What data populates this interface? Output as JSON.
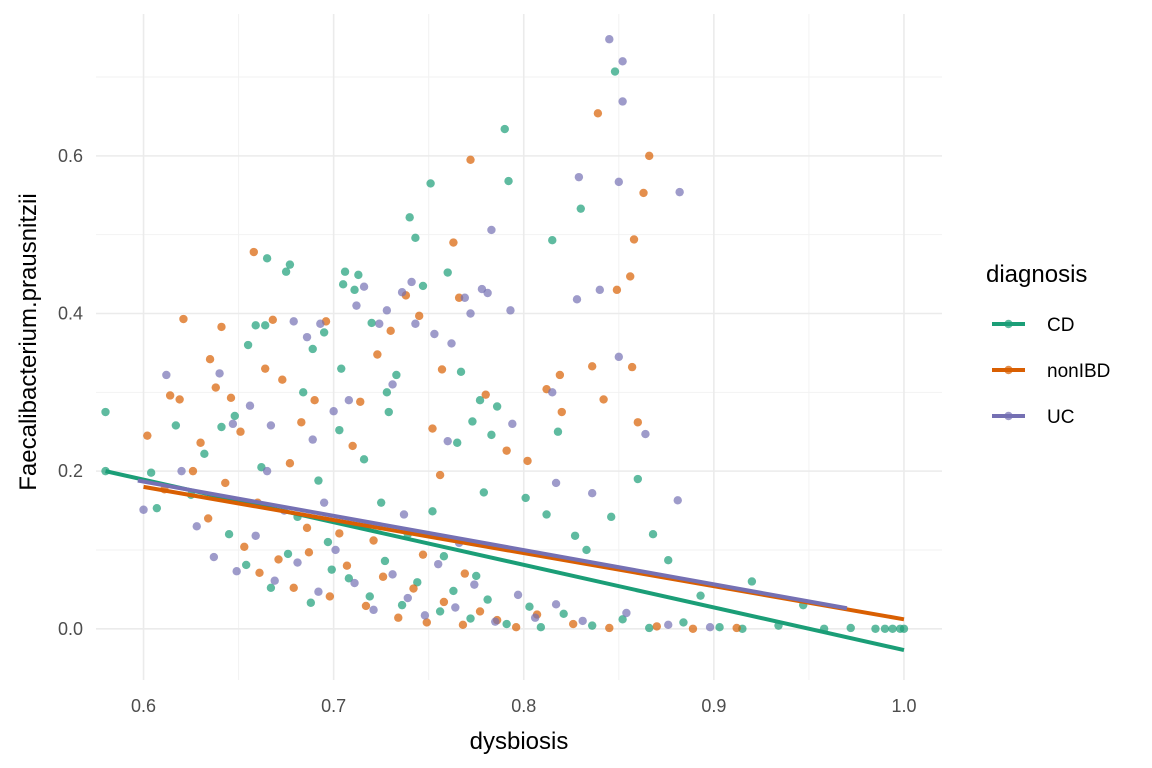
{
  "chart_data": {
    "type": "scatter",
    "title": "",
    "xlabel": "dysbiosis",
    "ylabel": "Faecalibacterium.prausnitzii",
    "xlim": [
      0.575,
      1.02
    ],
    "ylim": [
      -0.065,
      0.78
    ],
    "x_ticks": [
      "0.6",
      "0.7",
      "0.8",
      "0.9",
      "1.0"
    ],
    "y_ticks": [
      "0.0",
      "0.2",
      "0.4",
      "0.6"
    ],
    "grid": true,
    "legend": {
      "title": "diagnosis",
      "placement": "right"
    },
    "series": [
      {
        "name": "CD",
        "color": "#1B9E77",
        "trend": {
          "x": [
            0.58,
            1.0
          ],
          "y": [
            0.2,
            -0.027
          ]
        },
        "points": [
          [
            0.58,
            0.275
          ],
          [
            0.58,
            0.2
          ],
          [
            0.604,
            0.198
          ],
          [
            0.607,
            0.153
          ],
          [
            0.617,
            0.258
          ],
          [
            0.625,
            0.17
          ],
          [
            0.632,
            0.222
          ],
          [
            0.641,
            0.256
          ],
          [
            0.648,
            0.27
          ],
          [
            0.655,
            0.36
          ],
          [
            0.659,
            0.385
          ],
          [
            0.664,
            0.385
          ],
          [
            0.665,
            0.47
          ],
          [
            0.675,
            0.453
          ],
          [
            0.677,
            0.462
          ],
          [
            0.684,
            0.3
          ],
          [
            0.689,
            0.355
          ],
          [
            0.695,
            0.376
          ],
          [
            0.704,
            0.33
          ],
          [
            0.705,
            0.437
          ],
          [
            0.706,
            0.453
          ],
          [
            0.711,
            0.43
          ],
          [
            0.713,
            0.449
          ],
          [
            0.72,
            0.388
          ],
          [
            0.728,
            0.3
          ],
          [
            0.733,
            0.322
          ],
          [
            0.74,
            0.522
          ],
          [
            0.743,
            0.496
          ],
          [
            0.747,
            0.435
          ],
          [
            0.751,
            0.565
          ],
          [
            0.76,
            0.452
          ],
          [
            0.767,
            0.326
          ],
          [
            0.773,
            0.263
          ],
          [
            0.777,
            0.29
          ],
          [
            0.783,
            0.246
          ],
          [
            0.786,
            0.282
          ],
          [
            0.79,
            0.634
          ],
          [
            0.792,
            0.568
          ],
          [
            0.815,
            0.493
          ],
          [
            0.818,
            0.25
          ],
          [
            0.83,
            0.533
          ],
          [
            0.833,
            0.1
          ],
          [
            0.846,
            0.142
          ],
          [
            0.848,
            0.707
          ],
          [
            0.86,
            0.19
          ],
          [
            0.868,
            0.12
          ],
          [
            0.876,
            0.087
          ],
          [
            0.893,
            0.042
          ],
          [
            0.92,
            0.06
          ],
          [
            0.947,
            0.03
          ],
          [
            0.692,
            0.188
          ],
          [
            0.703,
            0.252
          ],
          [
            0.716,
            0.215
          ],
          [
            0.729,
            0.275
          ],
          [
            0.752,
            0.149
          ],
          [
            0.765,
            0.236
          ],
          [
            0.779,
            0.173
          ],
          [
            0.801,
            0.166
          ],
          [
            0.812,
            0.145
          ],
          [
            0.827,
            0.118
          ],
          [
            0.645,
            0.12
          ],
          [
            0.654,
            0.081
          ],
          [
            0.667,
            0.052
          ],
          [
            0.676,
            0.095
          ],
          [
            0.688,
            0.033
          ],
          [
            0.699,
            0.075
          ],
          [
            0.708,
            0.064
          ],
          [
            0.719,
            0.041
          ],
          [
            0.727,
            0.086
          ],
          [
            0.736,
            0.03
          ],
          [
            0.744,
            0.059
          ],
          [
            0.756,
            0.022
          ],
          [
            0.763,
            0.048
          ],
          [
            0.772,
            0.013
          ],
          [
            0.781,
            0.037
          ],
          [
            0.791,
            0.006
          ],
          [
            0.803,
            0.028
          ],
          [
            0.809,
            0.002
          ],
          [
            0.821,
            0.019
          ],
          [
            0.836,
            0.004
          ],
          [
            0.852,
            0.012
          ],
          [
            0.866,
            0.001
          ],
          [
            0.884,
            0.008
          ],
          [
            0.903,
            0.002
          ],
          [
            0.915,
            0.0
          ],
          [
            0.934,
            0.004
          ],
          [
            0.958,
            0.0
          ],
          [
            0.972,
            0.001
          ],
          [
            0.985,
            0.0
          ],
          [
            0.99,
            0.0
          ],
          [
            0.994,
            0.0
          ],
          [
            0.998,
            0.0
          ],
          [
            1.0,
            0.0
          ],
          [
            0.662,
            0.205
          ],
          [
            0.681,
            0.142
          ],
          [
            0.697,
            0.11
          ],
          [
            0.725,
            0.16
          ],
          [
            0.739,
            0.12
          ],
          [
            0.758,
            0.092
          ],
          [
            0.775,
            0.067
          ]
        ]
      },
      {
        "name": "nonIBD",
        "color": "#D95F02",
        "trend": {
          "x": [
            0.6,
            1.0
          ],
          "y": [
            0.18,
            0.012
          ]
        },
        "points": [
          [
            0.602,
            0.245
          ],
          [
            0.611,
            0.177
          ],
          [
            0.614,
            0.296
          ],
          [
            0.619,
            0.291
          ],
          [
            0.621,
            0.393
          ],
          [
            0.626,
            0.2
          ],
          [
            0.63,
            0.236
          ],
          [
            0.635,
            0.342
          ],
          [
            0.638,
            0.306
          ],
          [
            0.641,
            0.383
          ],
          [
            0.646,
            0.293
          ],
          [
            0.651,
            0.25
          ],
          [
            0.658,
            0.478
          ],
          [
            0.664,
            0.33
          ],
          [
            0.668,
            0.392
          ],
          [
            0.673,
            0.316
          ],
          [
            0.683,
            0.262
          ],
          [
            0.696,
            0.39
          ],
          [
            0.714,
            0.288
          ],
          [
            0.723,
            0.348
          ],
          [
            0.73,
            0.378
          ],
          [
            0.738,
            0.423
          ],
          [
            0.745,
            0.397
          ],
          [
            0.752,
            0.254
          ],
          [
            0.757,
            0.329
          ],
          [
            0.763,
            0.49
          ],
          [
            0.766,
            0.42
          ],
          [
            0.772,
            0.595
          ],
          [
            0.78,
            0.297
          ],
          [
            0.791,
            0.226
          ],
          [
            0.812,
            0.304
          ],
          [
            0.819,
            0.322
          ],
          [
            0.836,
            0.333
          ],
          [
            0.839,
            0.654
          ],
          [
            0.842,
            0.291
          ],
          [
            0.849,
            0.43
          ],
          [
            0.856,
            0.447
          ],
          [
            0.857,
            0.332
          ],
          [
            0.858,
            0.494
          ],
          [
            0.86,
            0.262
          ],
          [
            0.863,
            0.553
          ],
          [
            0.866,
            0.6
          ],
          [
            0.82,
            0.275
          ],
          [
            0.802,
            0.213
          ],
          [
            0.756,
            0.195
          ],
          [
            0.71,
            0.232
          ],
          [
            0.69,
            0.29
          ],
          [
            0.677,
            0.21
          ],
          [
            0.634,
            0.14
          ],
          [
            0.643,
            0.185
          ],
          [
            0.653,
            0.104
          ],
          [
            0.661,
            0.071
          ],
          [
            0.671,
            0.088
          ],
          [
            0.679,
            0.052
          ],
          [
            0.687,
            0.097
          ],
          [
            0.698,
            0.041
          ],
          [
            0.707,
            0.08
          ],
          [
            0.717,
            0.029
          ],
          [
            0.726,
            0.066
          ],
          [
            0.734,
            0.014
          ],
          [
            0.742,
            0.051
          ],
          [
            0.749,
            0.008
          ],
          [
            0.758,
            0.034
          ],
          [
            0.768,
            0.005
          ],
          [
            0.777,
            0.022
          ],
          [
            0.786,
            0.011
          ],
          [
            0.796,
            0.002
          ],
          [
            0.807,
            0.018
          ],
          [
            0.826,
            0.006
          ],
          [
            0.845,
            0.001
          ],
          [
            0.87,
            0.003
          ],
          [
            0.889,
            0.0
          ],
          [
            0.912,
            0.001
          ],
          [
            0.66,
            0.16
          ],
          [
            0.686,
            0.128
          ],
          [
            0.703,
            0.121
          ],
          [
            0.721,
            0.112
          ],
          [
            0.747,
            0.094
          ],
          [
            0.769,
            0.07
          ]
        ]
      },
      {
        "name": "UC",
        "color": "#7570B3",
        "trend": {
          "x": [
            0.597,
            0.97
          ],
          "y": [
            0.188,
            0.026
          ]
        },
        "points": [
          [
            0.6,
            0.151
          ],
          [
            0.612,
            0.322
          ],
          [
            0.62,
            0.2
          ],
          [
            0.64,
            0.324
          ],
          [
            0.647,
            0.26
          ],
          [
            0.656,
            0.283
          ],
          [
            0.667,
            0.258
          ],
          [
            0.679,
            0.39
          ],
          [
            0.686,
            0.37
          ],
          [
            0.693,
            0.387
          ],
          [
            0.7,
            0.276
          ],
          [
            0.708,
            0.29
          ],
          [
            0.712,
            0.41
          ],
          [
            0.716,
            0.434
          ],
          [
            0.724,
            0.387
          ],
          [
            0.728,
            0.404
          ],
          [
            0.736,
            0.427
          ],
          [
            0.741,
            0.44
          ],
          [
            0.743,
            0.387
          ],
          [
            0.753,
            0.374
          ],
          [
            0.762,
            0.362
          ],
          [
            0.769,
            0.42
          ],
          [
            0.772,
            0.4
          ],
          [
            0.778,
            0.431
          ],
          [
            0.781,
            0.426
          ],
          [
            0.783,
            0.506
          ],
          [
            0.793,
            0.404
          ],
          [
            0.815,
            0.3
          ],
          [
            0.828,
            0.418
          ],
          [
            0.829,
            0.573
          ],
          [
            0.84,
            0.43
          ],
          [
            0.845,
            0.748
          ],
          [
            0.85,
            0.345
          ],
          [
            0.85,
            0.567
          ],
          [
            0.852,
            0.72
          ],
          [
            0.852,
            0.669
          ],
          [
            0.864,
            0.247
          ],
          [
            0.882,
            0.554
          ],
          [
            0.881,
            0.163
          ],
          [
            0.836,
            0.172
          ],
          [
            0.817,
            0.185
          ],
          [
            0.794,
            0.26
          ],
          [
            0.76,
            0.238
          ],
          [
            0.731,
            0.31
          ],
          [
            0.689,
            0.24
          ],
          [
            0.665,
            0.2
          ],
          [
            0.628,
            0.13
          ],
          [
            0.637,
            0.091
          ],
          [
            0.649,
            0.073
          ],
          [
            0.659,
            0.118
          ],
          [
            0.669,
            0.061
          ],
          [
            0.681,
            0.084
          ],
          [
            0.692,
            0.047
          ],
          [
            0.701,
            0.1
          ],
          [
            0.711,
            0.058
          ],
          [
            0.721,
            0.024
          ],
          [
            0.731,
            0.069
          ],
          [
            0.739,
            0.039
          ],
          [
            0.748,
            0.017
          ],
          [
            0.755,
            0.082
          ],
          [
            0.764,
            0.027
          ],
          [
            0.774,
            0.056
          ],
          [
            0.785,
            0.009
          ],
          [
            0.797,
            0.043
          ],
          [
            0.806,
            0.014
          ],
          [
            0.817,
            0.031
          ],
          [
            0.831,
            0.01
          ],
          [
            0.854,
            0.02
          ],
          [
            0.876,
            0.005
          ],
          [
            0.898,
            0.002
          ],
          [
            0.674,
            0.15
          ],
          [
            0.695,
            0.16
          ],
          [
            0.718,
            0.132
          ],
          [
            0.737,
            0.145
          ],
          [
            0.766,
            0.109
          ]
        ]
      }
    ]
  }
}
